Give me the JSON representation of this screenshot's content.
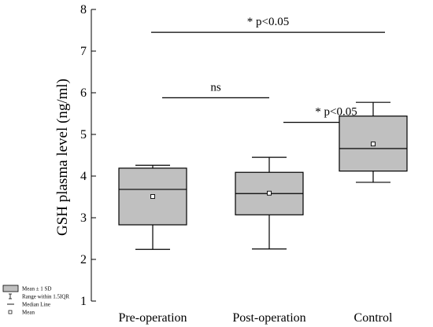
{
  "chart_data": {
    "type": "box",
    "ylabel": "GSH plasma level (ng/ml)",
    "ylim": [
      1,
      8
    ],
    "yticks": [
      1,
      2,
      3,
      4,
      5,
      6,
      7,
      8
    ],
    "categories": [
      "Pre-operation",
      "Post-operation",
      "Control"
    ],
    "boxes": [
      {
        "category": "Pre-operation",
        "whisker_low": 2.24,
        "q1": 2.83,
        "median": 3.68,
        "q3": 4.19,
        "whisker_high": 4.26,
        "mean": 3.51
      },
      {
        "category": "Post-operation",
        "whisker_low": 2.25,
        "q1": 3.07,
        "median": 3.58,
        "q3": 4.09,
        "whisker_high": 4.45,
        "mean": 3.59
      },
      {
        "category": "Control",
        "whisker_low": 3.85,
        "q1": 4.12,
        "median": 4.66,
        "q3": 5.44,
        "whisker_high": 5.77,
        "mean": 4.77
      }
    ],
    "annotations": [
      {
        "from": "Pre-operation",
        "to": "Post-operation",
        "y": 5.88,
        "label": "ns"
      },
      {
        "from": "Post-operation",
        "to": "Control",
        "y": 5.29,
        "label": "* p<0.05"
      },
      {
        "from": "Pre-operation",
        "to": "Control",
        "y": 7.45,
        "label": "* p<0.05"
      }
    ],
    "legend": {
      "position": "bottom-left",
      "items": [
        {
          "symbol": "box",
          "label": "Mean ± 1 SD"
        },
        {
          "symbol": "whisker",
          "label": "Range within 1.5IQR"
        },
        {
          "symbol": "line",
          "label": "Median Line"
        },
        {
          "symbol": "square",
          "label": "Mean"
        }
      ]
    },
    "colors": {
      "box_fill": "#c0c0c0",
      "stroke": "#000000",
      "mean_fill": "#ffffff"
    }
  }
}
